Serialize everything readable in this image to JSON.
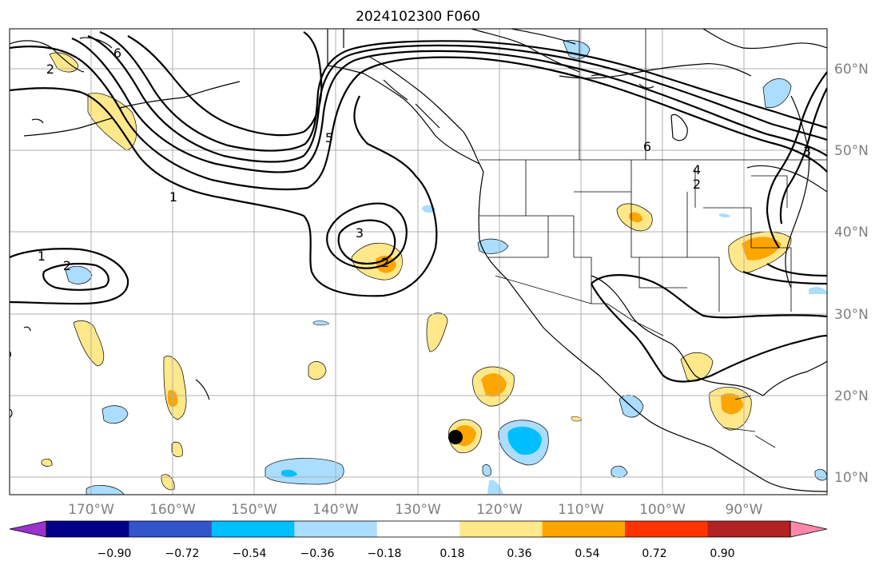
{
  "title": "2024102300 F060",
  "map": {
    "lon_labels": [
      "170°W",
      "160°W",
      "150°W",
      "140°W",
      "130°W",
      "120°W",
      "110°W",
      "100°W",
      "90°W"
    ],
    "lat_labels": [
      "60°N",
      "50°N",
      "40°N",
      "30°N",
      "20°N",
      "10°N"
    ],
    "contour_labels": [
      "2",
      "6",
      "1",
      "5",
      "3",
      "2",
      "1",
      "2",
      "6",
      "4",
      "2",
      "3"
    ],
    "gridline_color": "#b0b0b0",
    "ocean_background": "#ffffff"
  },
  "colorbar": {
    "ticks": [
      "−0.90",
      "−0.72",
      "−0.54",
      "−0.36",
      "−0.18",
      "0.18",
      "0.36",
      "0.54",
      "0.72",
      "0.90"
    ],
    "colors": [
      "#9933cc",
      "#000088",
      "#3355cc",
      "#00bfff",
      "#aaddff",
      "#ffffff",
      "#ffe88a",
      "#ffa500",
      "#ff3300",
      "#b22222",
      "#ff88aa"
    ]
  },
  "colors": {
    "light_blue": "#aaddff",
    "blue": "#00bfff",
    "yellow": "#ffe88a",
    "orange": "#ffa500",
    "storm_marker": "#000000"
  }
}
